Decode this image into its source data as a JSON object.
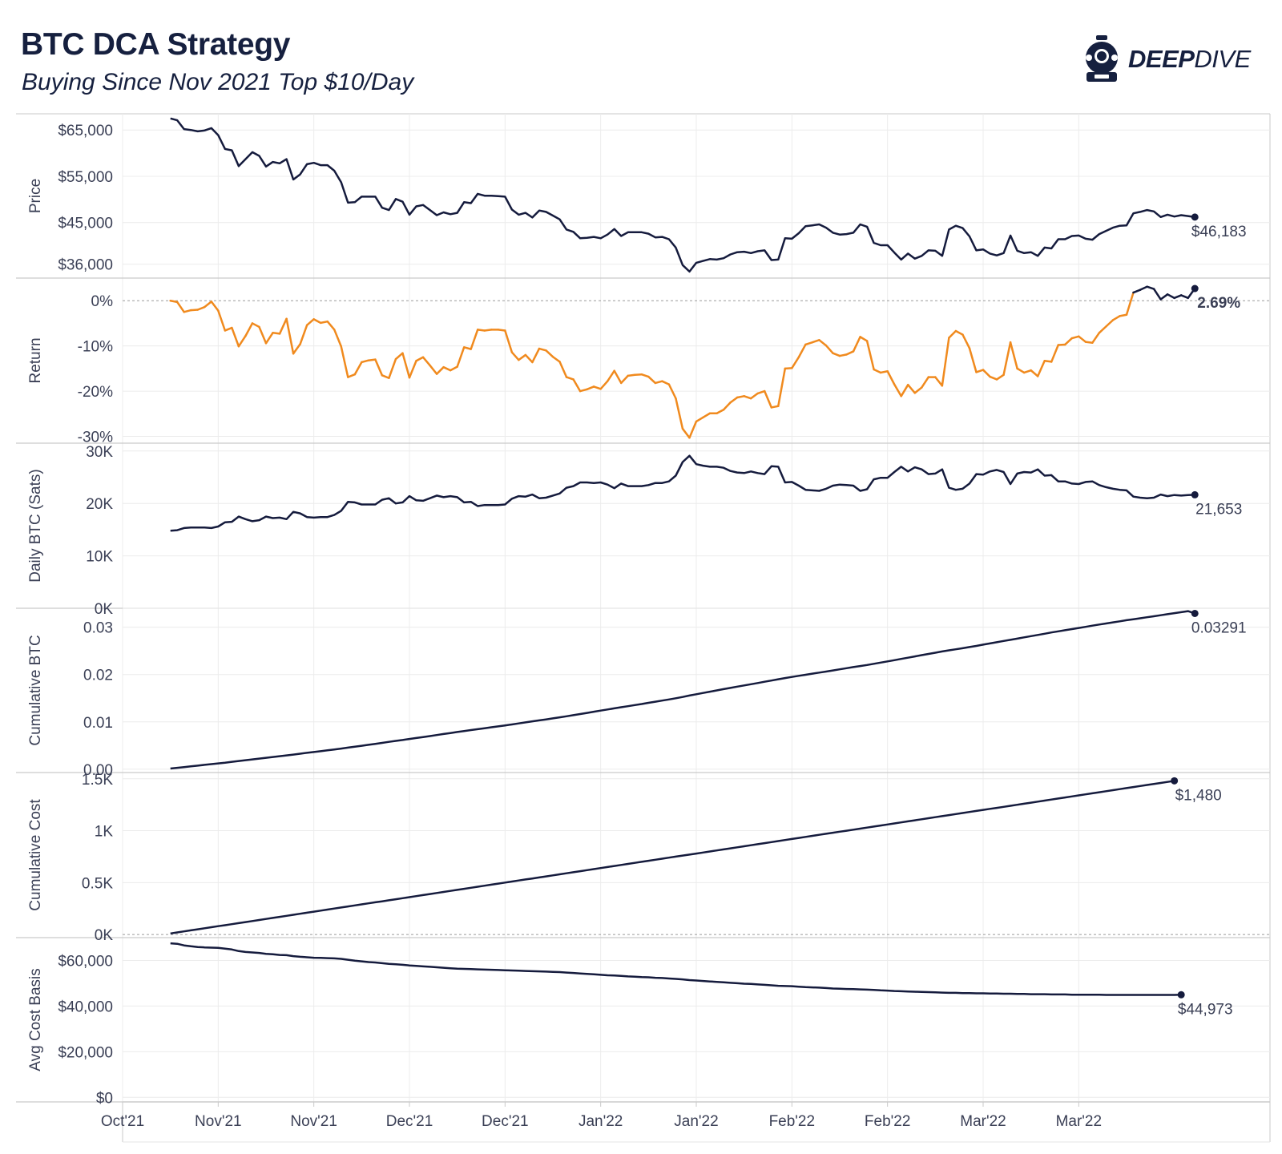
{
  "header": {
    "title": "BTC DCA Strategy",
    "subtitle": "Buying Since Nov 2021 Top $10/Day",
    "logo_text_bold": "DEEP",
    "logo_text_light": "DIVE"
  },
  "colors": {
    "line": "#151b3d",
    "return_negative": "#f08a1e",
    "grid": "#ececec",
    "axis": "#c9c9c9",
    "text": "#3a3f55"
  },
  "x_axis": {
    "tick_labels": [
      "Oct'21",
      "Nov'21",
      "Nov'21",
      "Dec'21",
      "Dec'21",
      "Jan'22",
      "Jan'22",
      "Feb'22",
      "Feb'22",
      "Mar'22",
      "Mar'22"
    ],
    "tick_dates": [
      "2021-10-25",
      "2021-11-08",
      "2021-11-22",
      "2021-12-06",
      "2021-12-20",
      "2022-01-03",
      "2022-01-17",
      "2022-01-31",
      "2022-02-14",
      "2022-02-28",
      "2022-03-14"
    ],
    "start_date": "2021-11-01",
    "end_date": "2022-03-21"
  },
  "chart_data": [
    {
      "type": "line",
      "ylabel": "Price",
      "ylim": [
        33000,
        68500
      ],
      "yticks": [
        36000,
        45000,
        55000,
        65000
      ],
      "ytick_labels": [
        "$36,000",
        "$45,000",
        "$55,000",
        "$65,000"
      ],
      "end_label": "$46,183",
      "values": [
        67500,
        67100,
        65200,
        65000,
        64700,
        64900,
        65400,
        63900,
        60900,
        60600,
        57200,
        58700,
        60200,
        59400,
        57100,
        58100,
        57800,
        58700,
        54300,
        55400,
        57600,
        57900,
        57400,
        57400,
        56200,
        53700,
        49300,
        49400,
        50600,
        50600,
        50600,
        48200,
        47700,
        50100,
        49500,
        46700,
        48500,
        48800,
        47700,
        46600,
        47200,
        46800,
        47100,
        49400,
        49200,
        51200,
        50800,
        50800,
        50700,
        50600,
        47800,
        46700,
        47100,
        46100,
        47600,
        47300,
        46500,
        45700,
        43500,
        43000,
        41600,
        41700,
        41900,
        41600,
        42400,
        43600,
        42100,
        42900,
        42900,
        42900,
        42600,
        41800,
        41900,
        41400,
        39600,
        35800,
        34400,
        36300,
        36700,
        37100,
        37000,
        37300,
        38100,
        38600,
        38700,
        38400,
        38800,
        39000,
        36900,
        37000,
        41600,
        41500,
        42700,
        44200,
        44400,
        44600,
        43900,
        42800,
        42400,
        42500,
        42800,
        44600,
        44100,
        40600,
        40100,
        40100,
        38500,
        37000,
        38300,
        37200,
        37800,
        39000,
        38900,
        37800,
        43500,
        44300,
        43800,
        42000,
        39000,
        39200,
        38300,
        37900,
        38400,
        42200,
        38900,
        38400,
        38600,
        37800,
        39600,
        39400,
        41400,
        41400,
        42100,
        42200,
        41500,
        41300,
        42500,
        43200,
        43900,
        44300,
        44400,
        47000,
        47300,
        47700,
        47400,
        46200,
        46700,
        46300,
        46600,
        46400,
        46183
      ]
    },
    {
      "type": "line",
      "ylabel": "Return",
      "ylim": [
        -31.5,
        5
      ],
      "yticks": [
        -30,
        -20,
        -10,
        0
      ],
      "ytick_labels": [
        "-30%",
        "-20%",
        "-10%",
        "0%"
      ],
      "end_label": "2.69%",
      "values": [
        0.0,
        -0.3,
        -2.5,
        -2.1,
        -2.0,
        -1.4,
        -0.2,
        -2.2,
        -6.6,
        -6.0,
        -10.1,
        -7.8,
        -5.0,
        -5.8,
        -9.4,
        -7.1,
        -7.3,
        -4.0,
        -11.7,
        -9.6,
        -5.4,
        -4.1,
        -4.9,
        -4.6,
        -6.4,
        -10.1,
        -16.9,
        -16.3,
        -13.6,
        -13.2,
        -13.0,
        -16.5,
        -17.1,
        -12.9,
        -11.6,
        -17.0,
        -13.3,
        -12.5,
        -14.3,
        -16.2,
        -14.7,
        -15.4,
        -14.6,
        -10.3,
        -10.7,
        -6.4,
        -6.6,
        -6.4,
        -6.4,
        -6.6,
        -11.4,
        -13.1,
        -12.0,
        -13.6,
        -10.6,
        -11.0,
        -12.4,
        -13.5,
        -16.9,
        -17.4,
        -20.0,
        -19.6,
        -19.0,
        -19.5,
        -17.8,
        -15.5,
        -18.2,
        -16.6,
        -16.4,
        -16.3,
        -16.8,
        -18.2,
        -17.8,
        -18.5,
        -21.6,
        -28.3,
        -30.3,
        -26.7,
        -25.8,
        -24.9,
        -24.9,
        -24.1,
        -22.5,
        -21.4,
        -21.1,
        -21.6,
        -20.5,
        -20.0,
        -23.6,
        -23.3,
        -15.0,
        -14.9,
        -12.5,
        -9.7,
        -9.2,
        -8.7,
        -9.9,
        -11.6,
        -12.2,
        -11.9,
        -11.2,
        -8.0,
        -8.9,
        -15.2,
        -15.9,
        -15.6,
        -18.5,
        -21.1,
        -18.6,
        -20.4,
        -19.2,
        -16.9,
        -16.9,
        -18.8,
        -8.2,
        -6.7,
        -7.5,
        -10.5,
        -15.8,
        -15.3,
        -16.8,
        -17.4,
        -16.4,
        -9.2,
        -15.0,
        -15.9,
        -15.4,
        -16.7,
        -13.3,
        -13.5,
        -9.8,
        -9.7,
        -8.3,
        -7.9,
        -9.1,
        -9.3,
        -7.1,
        -5.7,
        -4.3,
        -3.4,
        -3.1,
        1.8,
        2.4,
        3.1,
        2.6,
        0.3,
        1.4,
        0.6,
        1.2,
        0.6,
        2.69
      ]
    },
    {
      "type": "line",
      "ylabel": "Daily BTC (Sats)",
      "ylim": [
        0,
        31500
      ],
      "yticks": [
        0,
        10000,
        20000,
        30000
      ],
      "ytick_labels": [
        "0K",
        "10K",
        "20K",
        "30K"
      ],
      "end_label": "21,653",
      "values": [
        14800,
        14900,
        15300,
        15400,
        15400,
        15400,
        15300,
        15600,
        16400,
        16500,
        17500,
        17000,
        16600,
        16800,
        17500,
        17200,
        17300,
        17000,
        18400,
        18100,
        17400,
        17300,
        17400,
        17400,
        17800,
        18600,
        20300,
        20200,
        19800,
        19800,
        19800,
        20700,
        21000,
        20000,
        20200,
        21400,
        20600,
        20500,
        21000,
        21500,
        21200,
        21400,
        21200,
        20200,
        20300,
        19500,
        19700,
        19700,
        19700,
        19800,
        20900,
        21400,
        21300,
        21700,
        21000,
        21100,
        21500,
        21900,
        23000,
        23300,
        24000,
        24000,
        23900,
        24000,
        23600,
        22900,
        23800,
        23300,
        23300,
        23300,
        23500,
        23900,
        23900,
        24200,
        25300,
        27900,
        29100,
        27500,
        27200,
        27000,
        27000,
        26800,
        26200,
        25900,
        25800,
        26100,
        25800,
        25600,
        27100,
        27000,
        24000,
        24100,
        23400,
        22600,
        22500,
        22400,
        22800,
        23400,
        23600,
        23500,
        23400,
        22400,
        22700,
        24600,
        24900,
        24900,
        26000,
        27000,
        26100,
        26900,
        26500,
        25600,
        25700,
        26500,
        23000,
        22600,
        22800,
        23800,
        25600,
        25500,
        26100,
        26400,
        26000,
        23700,
        25700,
        26000,
        25900,
        26500,
        25300,
        25400,
        24200,
        24200,
        23800,
        23700,
        24100,
        24200,
        23500,
        23100,
        22800,
        22600,
        22500,
        21300,
        21100,
        21000,
        21100,
        21700,
        21400,
        21600,
        21500,
        21600,
        21653
      ]
    },
    {
      "type": "line",
      "ylabel": "Cumulative BTC",
      "ylim": [
        -0.0007,
        0.034
      ],
      "yticks": [
        0,
        0.01,
        0.02,
        0.03
      ],
      "ytick_labels": [
        "0.00",
        "0.01",
        "0.02",
        "0.03"
      ],
      "end_label": "0.03291",
      "values": [
        0.00015,
        0.0003,
        0.00045,
        0.00061,
        0.00076,
        0.00092,
        0.00107,
        0.00123,
        0.00139,
        0.00156,
        0.00173,
        0.0019,
        0.00207,
        0.00224,
        0.00241,
        0.00258,
        0.00275,
        0.00292,
        0.0031,
        0.00328,
        0.00346,
        0.00364,
        0.00381,
        0.00399,
        0.00417,
        0.00436,
        0.00456,
        0.00476,
        0.00496,
        0.00516,
        0.00536,
        0.00557,
        0.00578,
        0.00598,
        0.00618,
        0.00639,
        0.0066,
        0.0068,
        0.00701,
        0.00723,
        0.00744,
        0.00765,
        0.00786,
        0.00806,
        0.00827,
        0.00846,
        0.00866,
        0.00886,
        0.00905,
        0.00925,
        0.00946,
        0.00968,
        0.00989,
        0.01011,
        0.01032,
        0.01053,
        0.01074,
        0.01096,
        0.01119,
        0.01142,
        0.01166,
        0.0119,
        0.01214,
        0.01238,
        0.01262,
        0.01285,
        0.01309,
        0.01332,
        0.01355,
        0.01378,
        0.01402,
        0.01426,
        0.0145,
        0.01474,
        0.01499,
        0.01527,
        0.01556,
        0.01584,
        0.01611,
        0.01638,
        0.01665,
        0.01692,
        0.01718,
        0.01744,
        0.0177,
        0.01796,
        0.01821,
        0.01847,
        0.01874,
        0.01901,
        0.01925,
        0.01949,
        0.01973,
        0.01995,
        0.02018,
        0.0204,
        0.02063,
        0.02087,
        0.0211,
        0.02134,
        0.02157,
        0.0218,
        0.02202,
        0.02227,
        0.02252,
        0.02277,
        0.02303,
        0.0233,
        0.02356,
        0.02383,
        0.02409,
        0.02435,
        0.02461,
        0.02488,
        0.02511,
        0.02533,
        0.02556,
        0.0258,
        0.02605,
        0.02631,
        0.02657,
        0.02683,
        0.02709,
        0.02733,
        0.02759,
        0.02785,
        0.02811,
        0.02837,
        0.02862,
        0.02888,
        0.02912,
        0.02936,
        0.0296,
        0.02984,
        0.03008,
        0.03032,
        0.03056,
        0.03079,
        0.03102,
        0.03124,
        0.03147,
        0.03168,
        0.03189,
        0.0321,
        0.03231,
        0.03253,
        0.03274,
        0.03296,
        0.03317,
        0.03339,
        0.03291
      ]
    },
    {
      "type": "line",
      "ylabel": "Cumulative Cost",
      "ylim": [
        -30,
        1560
      ],
      "yticks": [
        0,
        500,
        1000,
        1500
      ],
      "ytick_labels": [
        "0K",
        "0.5K",
        "1K",
        "1.5K"
      ],
      "end_label": "$1,480",
      "values": [
        10,
        20,
        30,
        40,
        50,
        60,
        70,
        80,
        90,
        100,
        110,
        120,
        130,
        140,
        150,
        160,
        170,
        180,
        190,
        200,
        210,
        220,
        230,
        240,
        250,
        260,
        270,
        280,
        290,
        300,
        310,
        320,
        330,
        340,
        350,
        360,
        370,
        380,
        390,
        400,
        410,
        420,
        430,
        440,
        450,
        460,
        470,
        480,
        490,
        500,
        510,
        520,
        530,
        540,
        550,
        560,
        570,
        580,
        590,
        600,
        610,
        620,
        630,
        640,
        650,
        660,
        670,
        680,
        690,
        700,
        710,
        720,
        730,
        740,
        750,
        760,
        770,
        780,
        790,
        800,
        810,
        820,
        830,
        840,
        850,
        860,
        870,
        880,
        890,
        900,
        910,
        920,
        930,
        940,
        950,
        960,
        970,
        980,
        990,
        1000,
        1010,
        1020,
        1030,
        1040,
        1050,
        1060,
        1070,
        1080,
        1090,
        1100,
        1110,
        1120,
        1130,
        1140,
        1150,
        1160,
        1170,
        1180,
        1190,
        1200,
        1210,
        1220,
        1230,
        1240,
        1250,
        1260,
        1270,
        1280,
        1290,
        1300,
        1310,
        1320,
        1330,
        1340,
        1350,
        1360,
        1370,
        1380,
        1390,
        1400,
        1410,
        1420,
        1430,
        1440,
        1450,
        1460,
        1470,
        1480
      ]
    },
    {
      "type": "line",
      "ylabel": "Avg Cost Basis",
      "ylim": [
        -2000,
        70000
      ],
      "yticks": [
        0,
        20000,
        40000,
        60000
      ],
      "ytick_labels": [
        "$0",
        "$20,000",
        "$40,000",
        "$60,000"
      ],
      "end_label": "$44,973",
      "values": [
        67500,
        67300,
        66600,
        66200,
        65900,
        65700,
        65600,
        65500,
        65200,
        64800,
        64100,
        63700,
        63500,
        63300,
        62900,
        62700,
        62400,
        62300,
        61900,
        61600,
        61400,
        61200,
        61100,
        61000,
        60900,
        60700,
        60300,
        59900,
        59600,
        59300,
        59100,
        58800,
        58500,
        58300,
        58100,
        57800,
        57600,
        57400,
        57200,
        57000,
        56800,
        56600,
        56400,
        56300,
        56200,
        56100,
        56000,
        55900,
        55800,
        55700,
        55600,
        55500,
        55400,
        55300,
        55200,
        55100,
        55000,
        54900,
        54700,
        54500,
        54300,
        54100,
        53900,
        53700,
        53500,
        53400,
        53200,
        53000,
        52900,
        52700,
        52600,
        52400,
        52300,
        52100,
        51900,
        51700,
        51400,
        51200,
        51000,
        50800,
        50600,
        50400,
        50200,
        50000,
        49800,
        49700,
        49500,
        49300,
        49100,
        48900,
        48800,
        48700,
        48500,
        48300,
        48200,
        48100,
        47900,
        47700,
        47600,
        47500,
        47400,
        47300,
        47200,
        47100,
        46900,
        46800,
        46600,
        46500,
        46400,
        46300,
        46200,
        46100,
        46000,
        45900,
        45800,
        45800,
        45700,
        45700,
        45600,
        45600,
        45500,
        45500,
        45400,
        45400,
        45300,
        45300,
        45200,
        45200,
        45200,
        45100,
        45100,
        45100,
        45000,
        45000,
        45000,
        45000,
        45000,
        44900,
        44900,
        44900,
        44900,
        44900,
        44900,
        44900,
        44900,
        44900,
        44900,
        44900,
        44973
      ]
    }
  ]
}
